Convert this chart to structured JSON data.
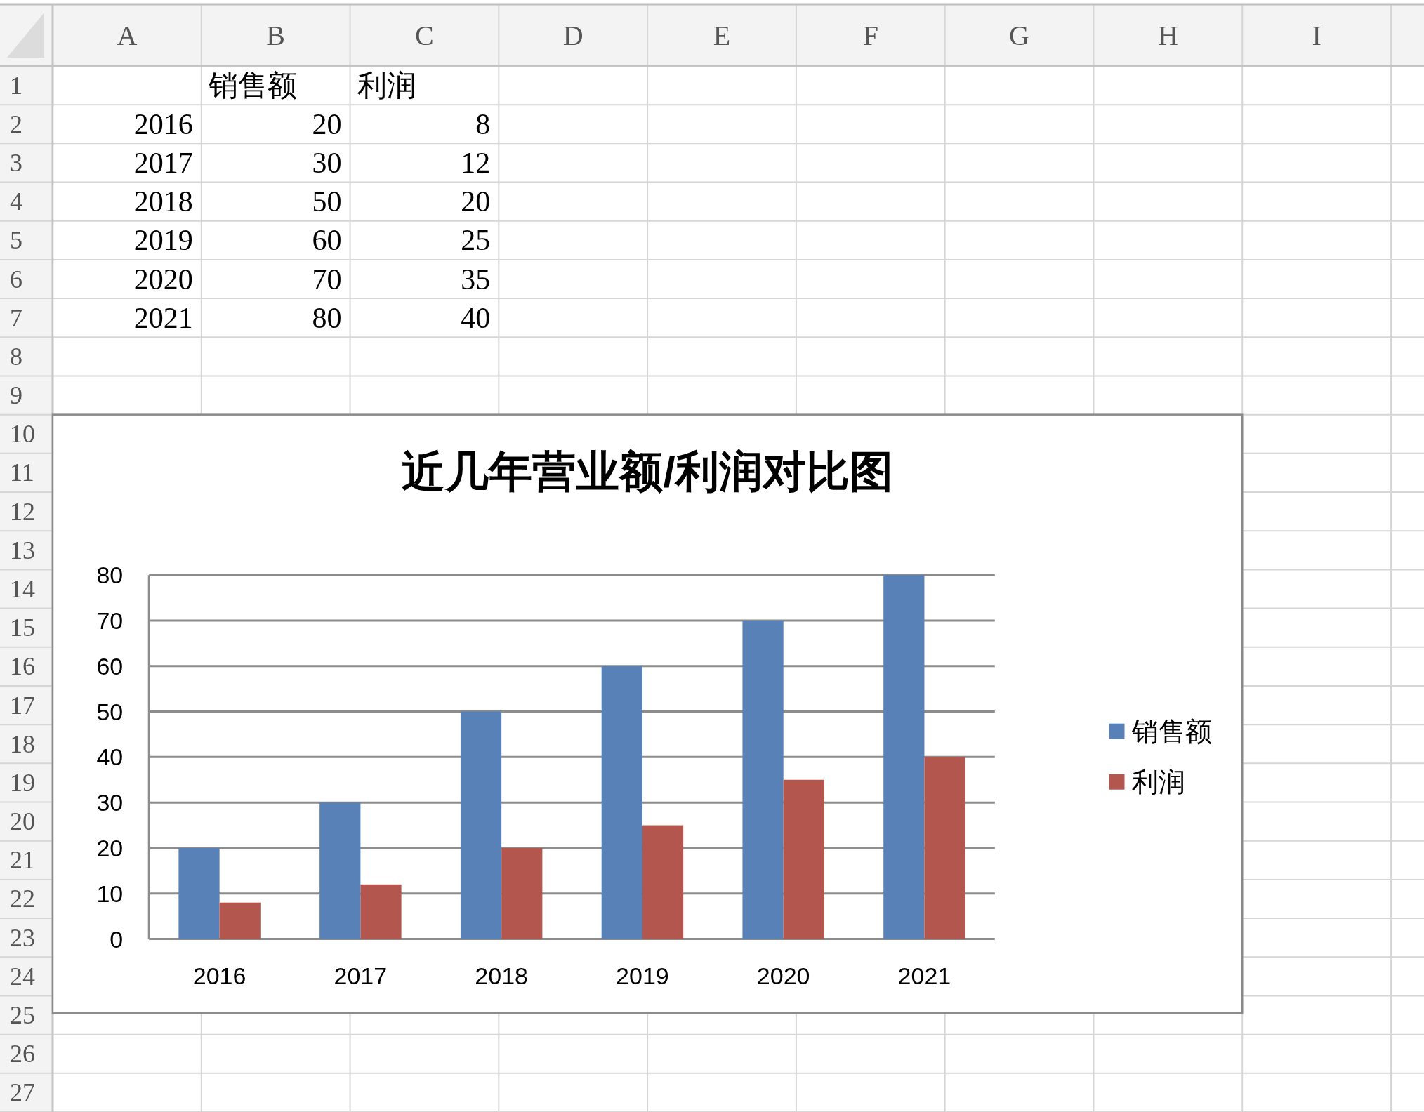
{
  "chart_data": [
    {
      "type": "heatmap",
      "categories": [
        "A",
        "B",
        "C",
        "D",
        "E",
        "F",
        "G",
        "H",
        "I"
      ],
      "y_categories": [
        "1",
        "2",
        "3",
        "4",
        "5",
        "6",
        "7",
        "8",
        "9",
        "10",
        "11",
        "12",
        "13",
        "14",
        "15",
        "16",
        "17",
        "18",
        "19",
        "20",
        "21",
        "22",
        "23",
        "24",
        "25",
        "26",
        "27"
      ],
      "cells": [
        [
          null,
          null,
          null,
          null,
          null,
          null,
          null,
          null,
          null
        ],
        [
          2016,
          20,
          8,
          null,
          null,
          null,
          null,
          null,
          null
        ],
        [
          2017,
          30,
          12,
          null,
          null,
          null,
          null,
          null,
          null
        ],
        [
          2018,
          50,
          20,
          null,
          null,
          null,
          null,
          null,
          null
        ],
        [
          2019,
          60,
          25,
          null,
          null,
          null,
          null,
          null,
          null
        ],
        [
          2020,
          70,
          35,
          null,
          null,
          null,
          null,
          null,
          null
        ],
        [
          2021,
          80,
          40,
          null,
          null,
          null,
          null,
          null,
          null
        ],
        [
          null,
          null,
          null,
          null,
          null,
          null,
          null,
          null,
          null
        ],
        [
          null,
          null,
          null,
          null,
          null,
          null,
          null,
          null,
          null
        ],
        [
          null,
          null,
          null,
          null,
          null,
          null,
          null,
          null,
          null
        ],
        [
          null,
          null,
          null,
          null,
          null,
          null,
          null,
          null,
          null
        ],
        [
          null,
          null,
          null,
          null,
          null,
          null,
          null,
          null,
          null
        ],
        [
          null,
          null,
          null,
          null,
          null,
          null,
          null,
          null,
          null
        ],
        [
          null,
          null,
          null,
          null,
          null,
          null,
          null,
          null,
          null
        ],
        [
          null,
          null,
          null,
          null,
          null,
          null,
          null,
          null,
          null
        ],
        [
          null,
          null,
          null,
          null,
          null,
          null,
          null,
          null,
          null
        ],
        [
          null,
          null,
          null,
          null,
          null,
          null,
          null,
          null,
          null
        ],
        [
          null,
          null,
          null,
          null,
          null,
          null,
          null,
          null,
          null
        ],
        [
          null,
          null,
          null,
          null,
          null,
          null,
          null,
          null,
          null
        ],
        [
          null,
          null,
          null,
          null,
          null,
          null,
          null,
          null,
          null
        ],
        [
          null,
          null,
          null,
          null,
          null,
          null,
          null,
          null,
          null
        ],
        [
          null,
          null,
          null,
          null,
          null,
          null,
          null,
          null,
          null
        ],
        [
          null,
          null,
          null,
          null,
          null,
          null,
          null,
          null,
          null
        ],
        [
          null,
          null,
          null,
          null,
          null,
          null,
          null,
          null,
          null
        ],
        [
          null,
          null,
          null,
          null,
          null,
          null,
          null,
          null,
          null
        ],
        [
          null,
          null,
          null,
          null,
          null,
          null,
          null,
          null,
          null
        ],
        [
          null,
          null,
          null,
          null,
          null,
          null,
          null,
          null,
          null
        ]
      ],
      "annotations": [
        "销售额",
        "利润"
      ],
      "data_labels": true
    },
    {
      "type": "bar",
      "title": "近几年营业额/利润对比图",
      "categories": [
        "2016",
        "2017",
        "2018",
        "2019",
        "2020",
        "2021"
      ],
      "series": [
        {
          "name": "销售额",
          "color": "#5881b8",
          "values": [
            20,
            30,
            50,
            60,
            70,
            80
          ]
        },
        {
          "name": "利润",
          "color": "#b3564e",
          "values": [
            8,
            12,
            20,
            25,
            35,
            40
          ]
        }
      ],
      "ylim": [
        0,
        80
      ],
      "yticks": [
        0,
        10,
        20,
        30,
        40,
        50,
        60,
        70,
        80
      ],
      "grid": "y",
      "legend": "right"
    }
  ]
}
